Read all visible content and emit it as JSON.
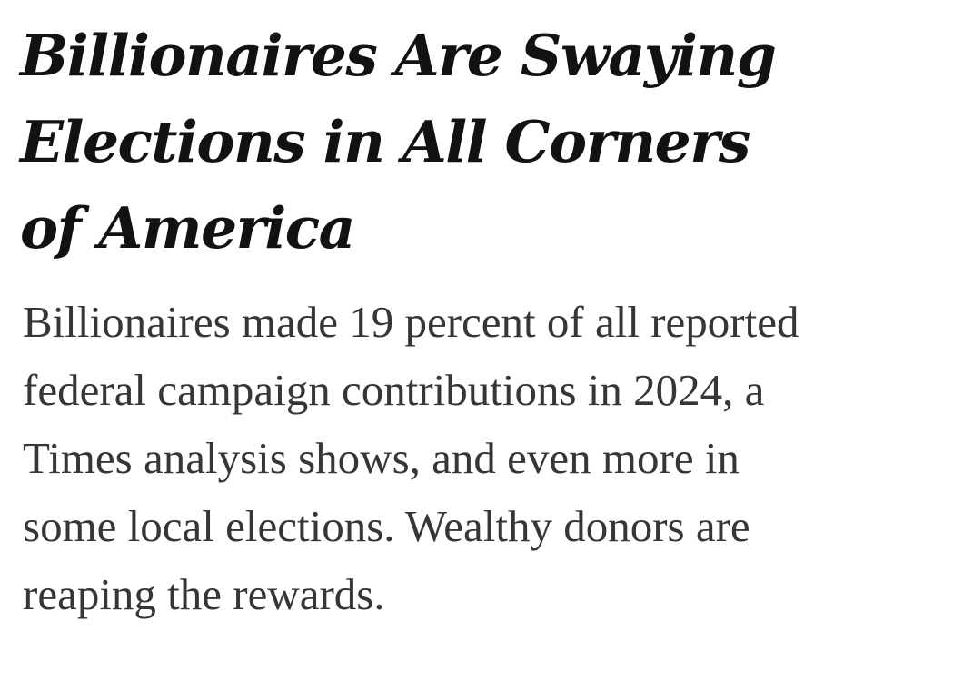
{
  "article": {
    "headline_lines": [
      "Billionaires Are Swaying",
      "Elections in All Corners",
      "of America"
    ],
    "summary_lines": [
      "Billionaires made 19 percent of all reported",
      "federal campaign contributions in 2024, a",
      "Times analysis shows, and even more in",
      "some local elections. Wealthy donors are",
      "reaping the rewards."
    ]
  },
  "colors": {
    "headline_text": "#121212",
    "summary_text": "#363636",
    "background": "#ffffff"
  }
}
